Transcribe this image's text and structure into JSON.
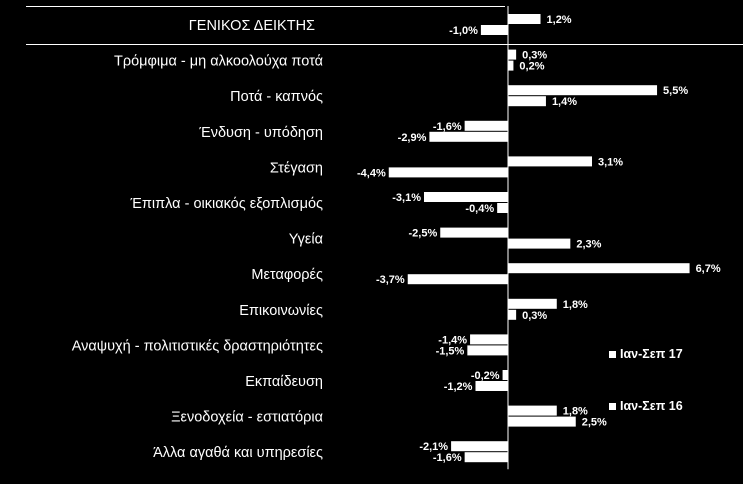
{
  "chart_data": {
    "type": "bar",
    "orientation": "horizontal",
    "categories": [
      "ΓΕΝΙΚΟΣ ΔΕΙΚΤΗΣ",
      "Τρόμφιμα - μη αλκοολούχα ποτά",
      "Ποτά - καπνός",
      "Ένδυση - υπόδηση",
      "Στέγαση",
      "Έπιπλα - οικιακός εξοπλισμός",
      "Υγεία",
      "Μεταφορές",
      "Επικοινωνίες",
      "Αναψυχή - πολιτιστικές δραστηριότητες",
      "Εκπαίδευση",
      "Ξενοδοχεία - εστιατόρια",
      "Άλλα αγαθά και υπηρεσίες"
    ],
    "series": [
      {
        "name": "Ιαν-Σεπ 17",
        "values": [
          1.2,
          0.3,
          5.5,
          -1.6,
          3.1,
          -3.1,
          -2.5,
          6.7,
          1.8,
          -1.4,
          -0.2,
          1.8,
          -2.1
        ],
        "labels": [
          "1,2%",
          "0,3%",
          "5,5%",
          "-1,6%",
          "3,1%",
          "-3,1%",
          "-2,5%",
          "6,7%",
          "1,8%",
          "-1,4%",
          "-0,2%",
          "1,8%",
          "-2,1%"
        ]
      },
      {
        "name": "Ιαν-Σεπ 16",
        "values": [
          -1.0,
          0.2,
          1.4,
          -2.9,
          -4.4,
          -0.4,
          2.3,
          -3.7,
          0.3,
          -1.5,
          -1.2,
          2.5,
          -1.6
        ],
        "labels": [
          "-1,0%",
          "0,2%",
          "1,4%",
          "-2,9%",
          "-4,4%",
          "-0,4%",
          "2,3%",
          "-3,7%",
          "0,3%",
          "-1,5%",
          "-1,2%",
          "2,5%",
          "-1,6%"
        ]
      }
    ],
    "legend": [
      "Ιαν-Σεπ 17",
      "Ιαν-Σεπ 16"
    ],
    "legend_position": "right",
    "grid": false,
    "xlim": [
      -4.4,
      6.7
    ],
    "colors": {
      "background": "#000000",
      "bars": "#ffffff",
      "text": "#ffffff"
    }
  }
}
